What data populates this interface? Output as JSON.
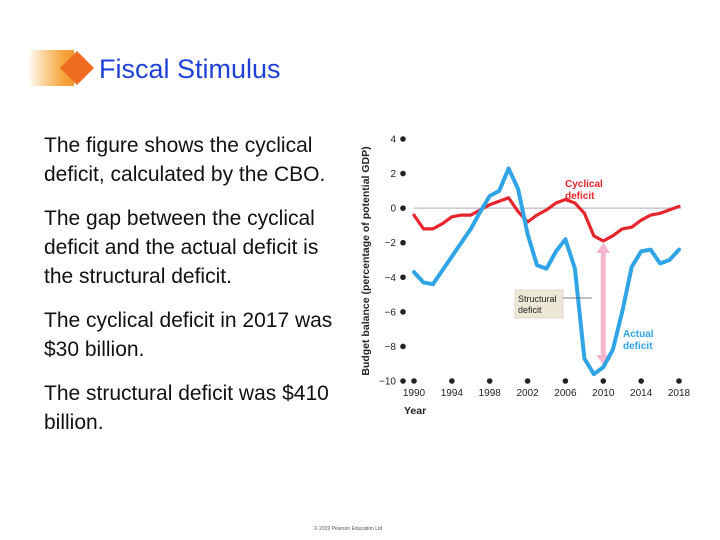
{
  "title": "Fiscal Stimulus",
  "bullets": [
    "The figure shows the cyclical deficit, calculated by the CBO.",
    "The gap between the cyclical deficit and the actual deficit is the structural deficit.",
    "The cyclical deficit in 2017 was $30 billion.",
    "The structural deficit was $410 billion."
  ],
  "footer": "© 2019 Pearson Education Ltd",
  "colors": {
    "title": "#1f41d8",
    "accent": "#ee6b1f",
    "cyclical": "#e8242c",
    "actual": "#2fa4e7",
    "gap": "#f4b6cf",
    "label_red": "#e8242c",
    "label_blue": "#2fa4e7"
  },
  "chart_data": {
    "type": "line",
    "ylabel": "Budget balance (percentage of potential GDP)",
    "xlabel": "Year",
    "ylim": [
      -10,
      4
    ],
    "xlim": [
      1990,
      2018
    ],
    "yticks": [
      4,
      2,
      0,
      -2,
      -4,
      -6,
      -8,
      -10
    ],
    "ytick_labels": [
      "4",
      "2",
      "0",
      "−2",
      "−4",
      "−6",
      "−8",
      "−10"
    ],
    "xticks": [
      1990,
      1994,
      1998,
      2002,
      2006,
      2010,
      2014,
      2018
    ],
    "series": [
      {
        "name": "Cyclical deficit",
        "x": [
          1990,
          1991,
          1992,
          1993,
          1994,
          1995,
          1996,
          1997,
          1998,
          1999,
          2000,
          2001,
          2002,
          2003,
          2004,
          2005,
          2006,
          2007,
          2008,
          2009,
          2010,
          2011,
          2012,
          2013,
          2014,
          2015,
          2016,
          2017,
          2018
        ],
        "y": [
          -0.4,
          -1.2,
          -1.2,
          -0.9,
          -0.5,
          -0.4,
          -0.4,
          -0.1,
          0.2,
          0.4,
          0.6,
          -0.2,
          -0.8,
          -0.4,
          -0.1,
          0.3,
          0.5,
          0.3,
          -0.3,
          -1.6,
          -1.9,
          -1.6,
          -1.2,
          -1.1,
          -0.7,
          -0.4,
          -0.3,
          -0.1,
          0.1
        ]
      },
      {
        "name": "Actual deficit",
        "x": [
          1990,
          1991,
          1992,
          1993,
          1994,
          1995,
          1996,
          1997,
          1998,
          1999,
          2000,
          2001,
          2002,
          2003,
          2004,
          2005,
          2006,
          2007,
          2008,
          2009,
          2010,
          2011,
          2012,
          2013,
          2014,
          2015,
          2016,
          2017,
          2018
        ],
        "y": [
          -3.7,
          -4.3,
          -4.4,
          -3.6,
          -2.8,
          -2.0,
          -1.2,
          -0.2,
          0.7,
          1.0,
          2.3,
          1.1,
          -1.5,
          -3.3,
          -3.5,
          -2.5,
          -1.8,
          -3.5,
          -8.7,
          -9.6,
          -9.2,
          -8.2,
          -6.0,
          -3.4,
          -2.5,
          -2.4,
          -3.2,
          -3.0,
          -2.4
        ]
      }
    ],
    "annotations": [
      {
        "text": [
          "Cyclical",
          "deficit"
        ]
      },
      {
        "text": [
          "Structural",
          "deficit"
        ]
      },
      {
        "text": [
          "Actual",
          "deficit"
        ]
      }
    ],
    "gap_year": 2010
  }
}
